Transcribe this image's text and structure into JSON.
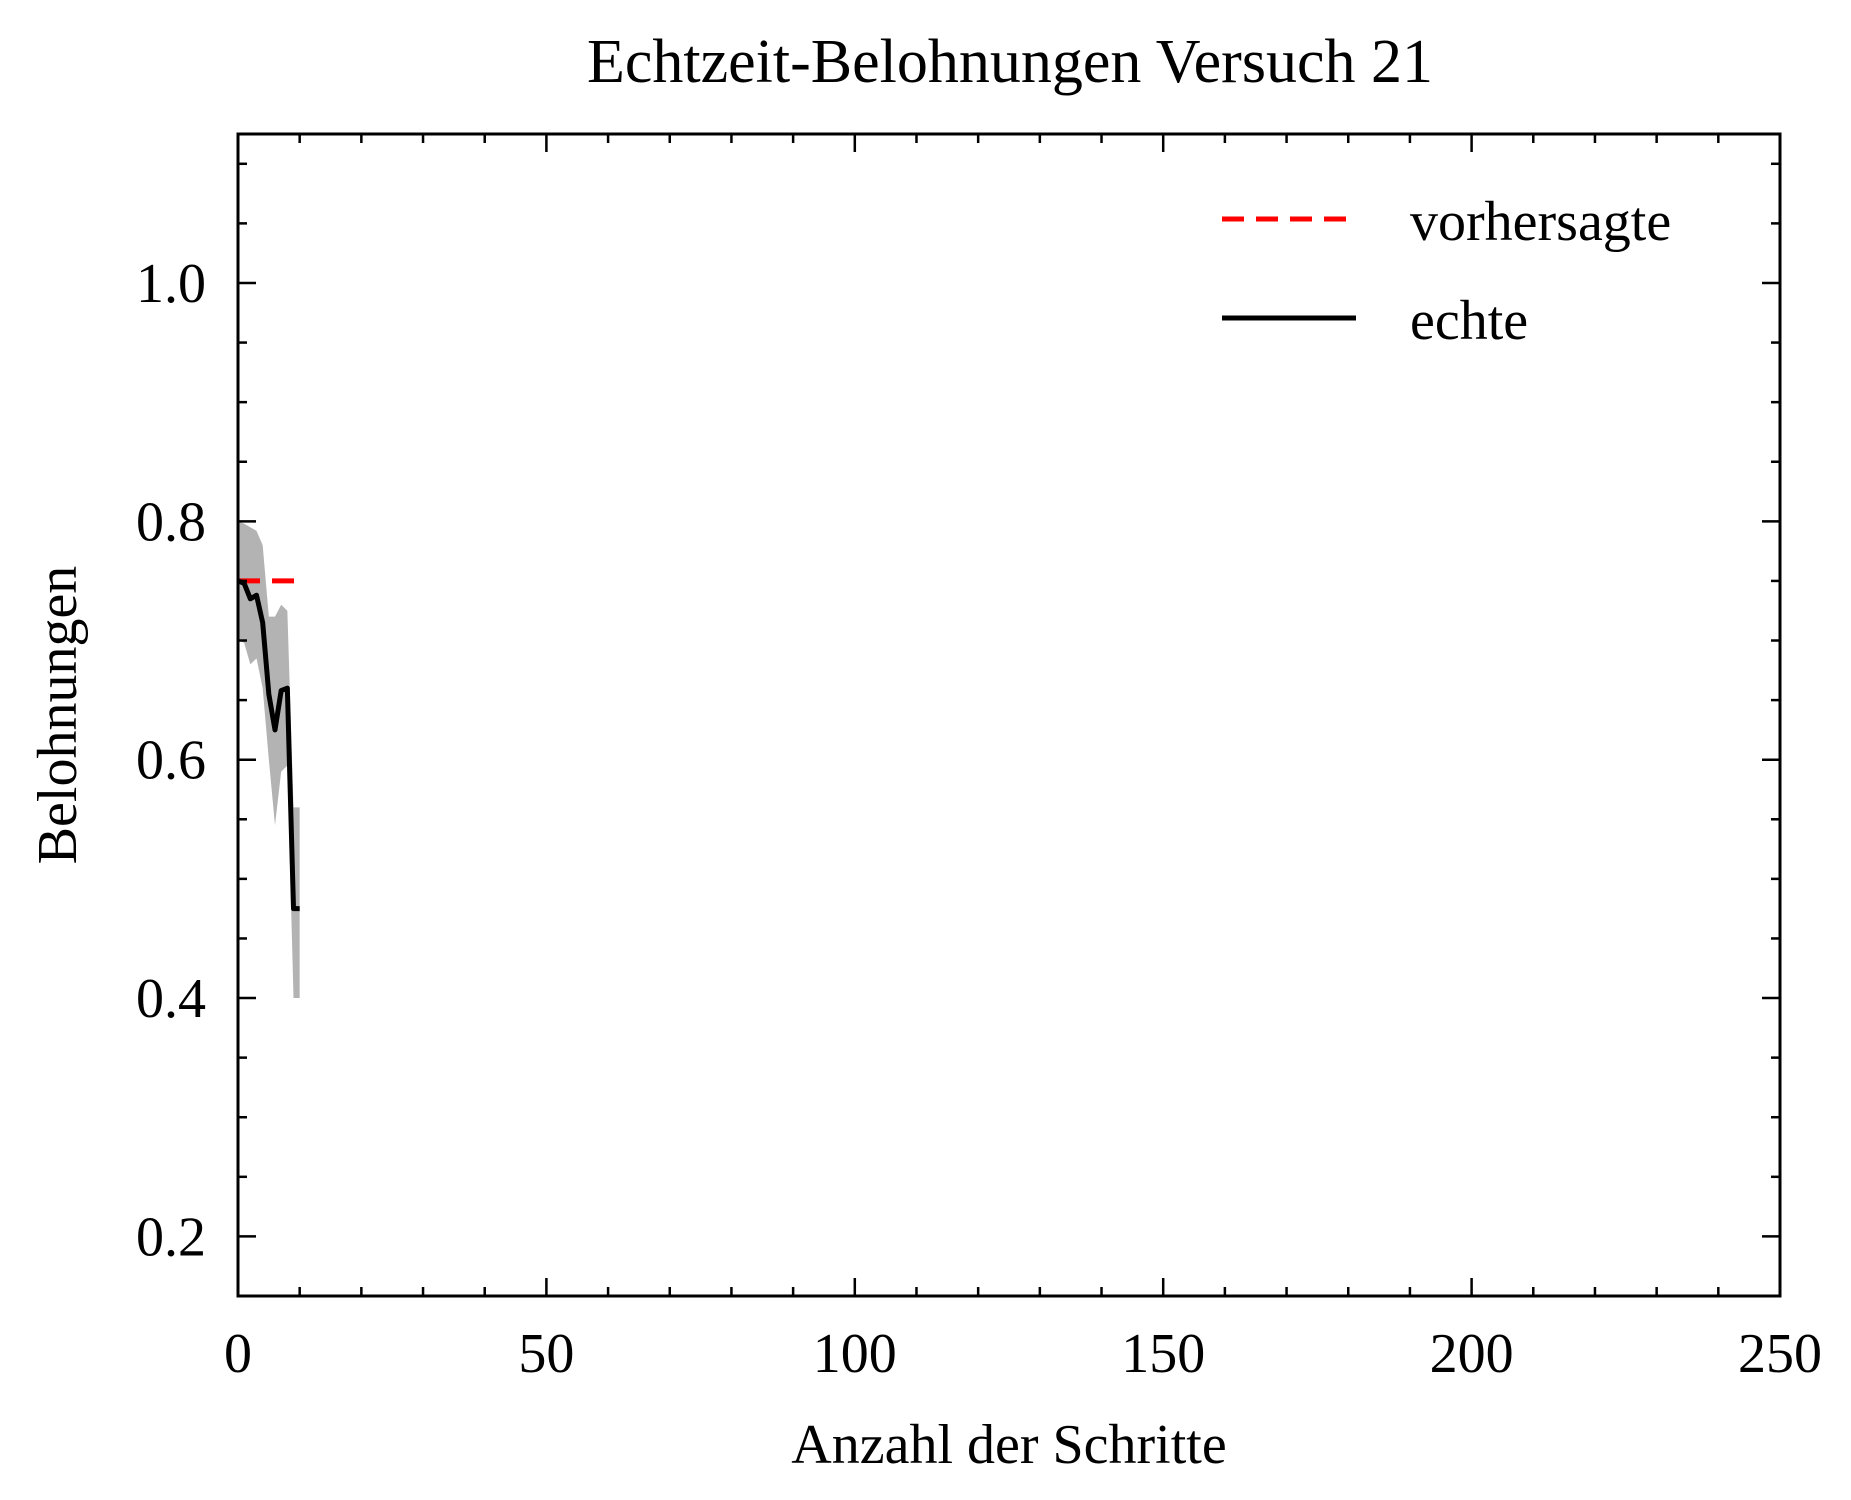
{
  "chart_data": {
    "type": "line",
    "title": "Echtzeit-Belohnungen Versuch 21",
    "xlabel": "Anzahl der Schritte",
    "ylabel": "Belohnungen",
    "xlim": [
      0,
      250
    ],
    "ylim": [
      0.15,
      1.125
    ],
    "x_ticks": [
      0,
      50,
      100,
      150,
      200,
      250
    ],
    "x_tick_labels": [
      "0",
      "50",
      "100",
      "150",
      "200",
      "250"
    ],
    "y_ticks": [
      0.2,
      0.4,
      0.6,
      0.8,
      1.0
    ],
    "y_tick_labels": [
      "0.2",
      "0.4",
      "0.6",
      "0.8",
      "1.0"
    ],
    "grid": false,
    "legend_position": "top-right",
    "series": [
      {
        "name": "vorhersagte",
        "style": "dashed",
        "color": "#ff0000",
        "x": [
          0,
          10
        ],
        "y": [
          0.75,
          0.75
        ]
      },
      {
        "name": "echte",
        "style": "solid",
        "color": "#000000",
        "x": [
          0,
          1,
          2,
          3,
          4,
          5,
          6,
          7,
          8,
          9,
          10
        ],
        "y": [
          0.75,
          0.748,
          0.735,
          0.738,
          0.715,
          0.655,
          0.625,
          0.658,
          0.66,
          0.475,
          0.475
        ]
      }
    ],
    "band": {
      "color": "#b3b3b3",
      "x": [
        0,
        1,
        2,
        3,
        4,
        5,
        6,
        7,
        8,
        9,
        10
      ],
      "upper": [
        0.8,
        0.798,
        0.795,
        0.792,
        0.78,
        0.72,
        0.72,
        0.73,
        0.725,
        0.56,
        0.56
      ],
      "lower": [
        0.7,
        0.698,
        0.68,
        0.685,
        0.66,
        0.6,
        0.545,
        0.59,
        0.595,
        0.4,
        0.4
      ]
    }
  }
}
